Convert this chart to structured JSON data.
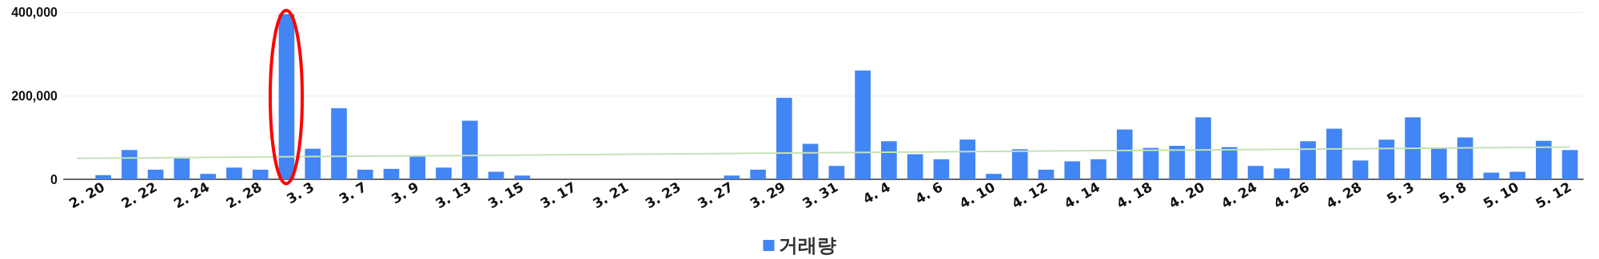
{
  "chart_data": {
    "type": "bar",
    "categories": [
      null,
      "2. 20",
      null,
      "2. 22",
      null,
      "2. 24",
      null,
      "2. 28",
      null,
      "3. 3",
      null,
      "3. 7",
      null,
      "3. 9",
      null,
      "3. 13",
      null,
      "3. 15",
      null,
      "3. 17",
      null,
      "3. 21",
      null,
      "3. 23",
      null,
      "3. 27",
      null,
      "3. 29",
      null,
      "3. 31",
      null,
      "4. 4",
      null,
      "4. 6",
      null,
      "4. 10",
      null,
      "4. 12",
      null,
      "4. 14",
      null,
      "4. 18",
      null,
      "4. 20",
      null,
      "4. 24",
      null,
      "4. 26",
      null,
      "4. 28",
      null,
      "5. 3",
      null,
      "5. 8",
      null,
      "5. 10",
      null,
      "5. 12"
    ],
    "series": [
      {
        "name": "거래량",
        "color": "#4285f4",
        "values": [
          0,
          10000,
          70000,
          23000,
          50000,
          13000,
          28000,
          23000,
          395000,
          73000,
          170000,
          23000,
          25000,
          55000,
          28000,
          140000,
          18000,
          9000,
          0,
          0,
          0,
          0,
          0,
          0,
          0,
          9000,
          23000,
          195000,
          85000,
          32000,
          260000,
          91000,
          60000,
          48000,
          95000,
          13000,
          72000,
          23000,
          43000,
          48000,
          119000,
          75000,
          80000,
          148000,
          77000,
          32000,
          26000,
          91000,
          121000,
          45000,
          95000,
          148000,
          76000,
          100000,
          16000,
          18000,
          92000,
          70000
        ]
      },
      {
        "type": "line",
        "color": "#c5e1b9",
        "values": [
          50000,
          null,
          null,
          null,
          null,
          null,
          null,
          null,
          null,
          null,
          null,
          null,
          null,
          null,
          null,
          null,
          null,
          null,
          null,
          null,
          null,
          null,
          null,
          null,
          null,
          null,
          null,
          null,
          null,
          null,
          null,
          null,
          null,
          null,
          null,
          null,
          null,
          null,
          null,
          null,
          null,
          null,
          null,
          null,
          null,
          null,
          null,
          null,
          null,
          null,
          null,
          null,
          null,
          null,
          null,
          null,
          null,
          77000
        ]
      }
    ],
    "ylim": [
      0,
      400000
    ],
    "yticks": [
      0,
      {
        "value": 200000,
        "label": "200,000"
      },
      {
        "value": 400000,
        "label": "400,000"
      }
    ],
    "grid": "y",
    "legend": "bottom"
  }
}
